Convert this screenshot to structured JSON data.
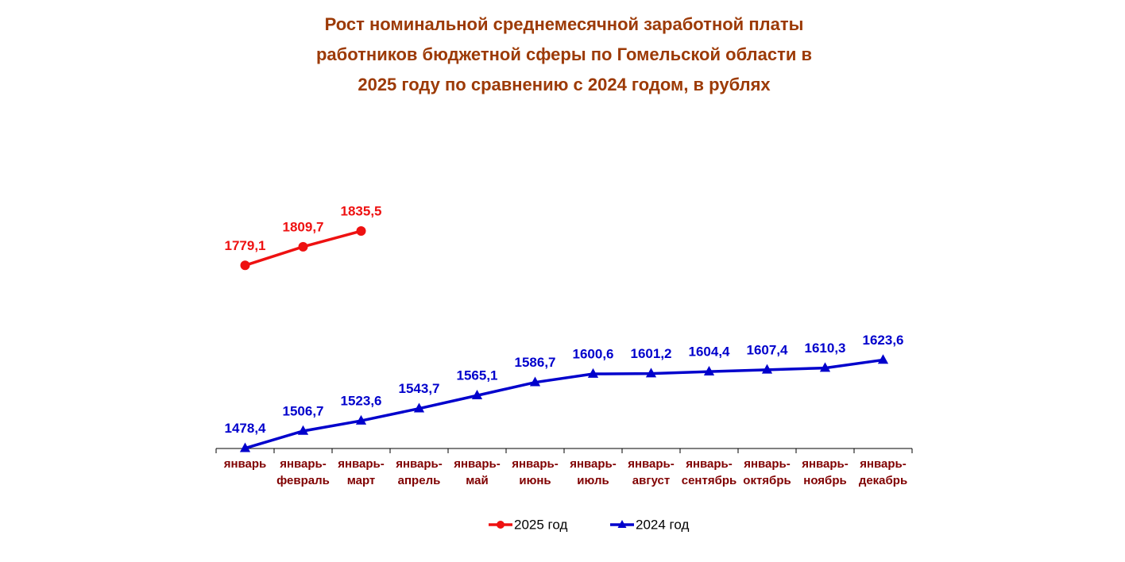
{
  "chart_data": {
    "type": "line",
    "title": "Рост номинальной среднемесячной заработной платы\nработников бюджетной сферы по Гомельской области в\n2025 году  по сравнению с 2024 годом, в рублях",
    "categories": [
      "январь",
      "январь-февраль",
      "январь-март",
      "январь-апрель",
      "январь-май",
      "январь-июнь",
      "январь-июль",
      "январь-август",
      "январь-сентябрь",
      "январь-октябрь",
      "январь-ноябрь",
      "январь-декабрь"
    ],
    "series": [
      {
        "name": "2025 год",
        "color": "#ee1111",
        "marker": "circle",
        "values": [
          1779.1,
          1809.7,
          1835.5,
          null,
          null,
          null,
          null,
          null,
          null,
          null,
          null,
          null
        ],
        "value_labels": [
          "1779,1",
          "1809,7",
          "1835,5",
          null,
          null,
          null,
          null,
          null,
          null,
          null,
          null,
          null
        ]
      },
      {
        "name": "2024 год",
        "color": "#0000cc",
        "marker": "triangle",
        "values": [
          1478.4,
          1506.7,
          1523.6,
          1543.7,
          1565.1,
          1586.7,
          1600.6,
          1601.2,
          1604.4,
          1607.4,
          1610.3,
          1623.6
        ],
        "value_labels": [
          "1478,4",
          "1506,7",
          "1523,6",
          "1543,7",
          "1565,1",
          "1586,7",
          "1600,6",
          "1601,2",
          "1604,4",
          "1607,4",
          "1610,3",
          "1623,6"
        ]
      }
    ],
    "ylim": [
      1478,
      2000
    ],
    "legend": "bottom"
  }
}
